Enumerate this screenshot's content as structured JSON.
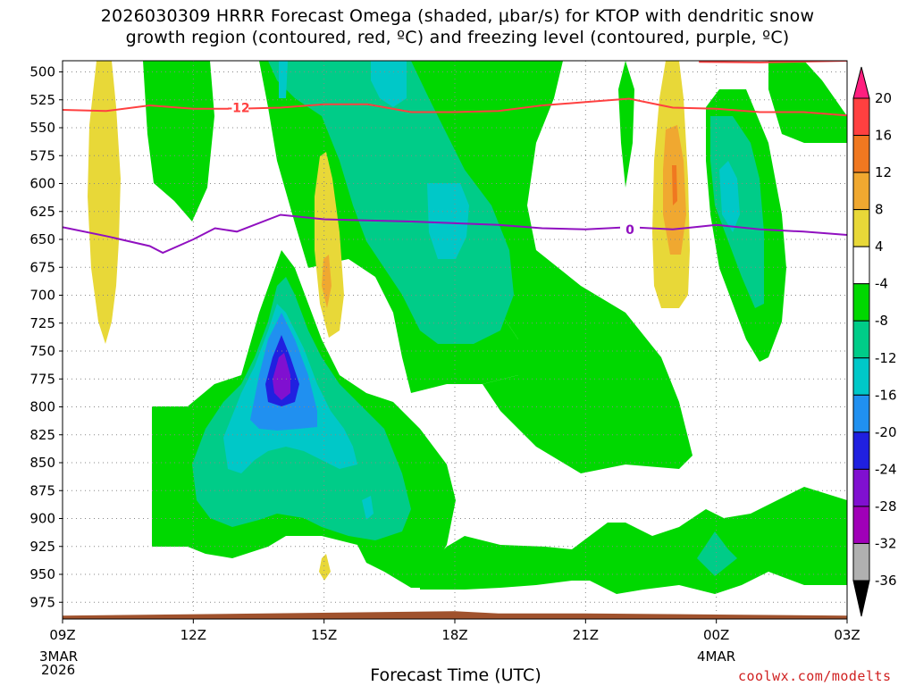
{
  "title": {
    "line1": "2026030309 HRRR Forecast Omega (shaded, μbar/s) for KTOP with dendritic snow",
    "line2": "growth region (contoured, red, ºC) and freezing level (contoured, purple, ºC)"
  },
  "xlabel": "Forecast Time (UTC)",
  "credit": "coolwx.com/modelts",
  "start_date": {
    "day": "3MAR",
    "year": "2026"
  },
  "mid_date": "4MAR",
  "chart_data": {
    "type": "heatmap",
    "title": "2026030309 HRRR Forecast Omega (shaded, μbar/s) for KTOP with dendritic snow growth region (contoured, red, ºC) and freezing level (contoured, purple, ºC)",
    "xlabel": "Forecast Time (UTC)",
    "ylabel": "",
    "x_ticks": [
      "09Z",
      "12Z",
      "15Z",
      "18Z",
      "21Z",
      "00Z",
      "03Z"
    ],
    "x_hours": [
      0,
      3,
      6,
      9,
      12,
      15,
      18
    ],
    "xlim_hours": [
      0,
      18
    ],
    "y_ticks": [
      500,
      525,
      550,
      575,
      600,
      625,
      650,
      675,
      700,
      725,
      750,
      775,
      800,
      825,
      850,
      875,
      900,
      925,
      950,
      975
    ],
    "ylim_hPa": [
      490,
      990
    ],
    "y_inverted": true,
    "grid": true,
    "colorbar": {
      "levels": [
        20,
        16,
        12,
        8,
        4,
        -4,
        -8,
        -12,
        -16,
        -20,
        -24,
        -28,
        -32,
        -36
      ],
      "colors": [
        "#ff1f7f",
        "#ff4040",
        "#f07820",
        "#f0a830",
        "#e8d838",
        "#ffffff",
        "#00d800",
        "#00cc88",
        "#00c8c8",
        "#2090f0",
        "#2020e0",
        "#8010d0",
        "#a000b8",
        "#b0b0b0",
        "#000000"
      ]
    },
    "contours": [
      {
        "name": "dendritic snow growth region",
        "label": "-12",
        "color": "#ff4040",
        "points": [
          [
            0,
            534
          ],
          [
            1,
            535
          ],
          [
            2,
            530
          ],
          [
            3,
            533
          ],
          [
            4,
            533
          ],
          [
            5,
            532
          ],
          [
            6,
            529
          ],
          [
            7,
            529
          ],
          [
            8,
            536
          ],
          [
            9,
            536
          ],
          [
            10,
            535
          ],
          [
            11,
            530
          ],
          [
            12,
            527
          ],
          [
            13,
            524
          ],
          [
            14,
            532
          ],
          [
            15,
            533
          ],
          [
            16,
            536
          ],
          [
            17,
            536
          ],
          [
            18,
            539
          ]
        ]
      },
      {
        "name": "freezing level",
        "label": "0",
        "color": "#9010c0",
        "points": [
          [
            0,
            639
          ],
          [
            1,
            647
          ],
          [
            2,
            656
          ],
          [
            2.3,
            662
          ],
          [
            3,
            650
          ],
          [
            3.5,
            640
          ],
          [
            4,
            643
          ],
          [
            5,
            628
          ],
          [
            6,
            632
          ],
          [
            8,
            634
          ],
          [
            10,
            637
          ],
          [
            11,
            640
          ],
          [
            12,
            641
          ],
          [
            13,
            639
          ],
          [
            14,
            641
          ],
          [
            15,
            637
          ],
          [
            16,
            641
          ],
          [
            17,
            643
          ],
          [
            18,
            646
          ]
        ]
      }
    ],
    "terrain_hPa": [
      [
        0,
        987
      ],
      [
        9,
        983
      ],
      [
        10,
        985
      ],
      [
        12,
        985
      ],
      [
        15,
        986
      ],
      [
        18,
        987
      ]
    ]
  }
}
